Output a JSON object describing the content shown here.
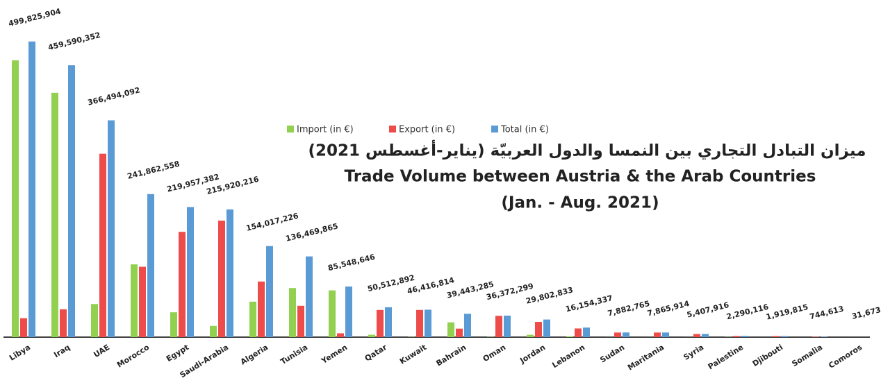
{
  "chart_data": {
    "type": "bar",
    "title_arabic": "ميزان التبادل التجاري بين النمسا والدول العربيّة (يناير-أغسطس 2021)",
    "title": "Trade Volume between Austria & the Arab Countries",
    "subtitle": "(Jan. - Aug. 2021)",
    "categories": [
      "Libya",
      "Iraq",
      "UAE",
      "Morocco",
      "Egypt",
      "Saudi-Arabia",
      "Algeria",
      "Tunisia",
      "Yemen",
      "Qatar",
      "Kuwait",
      "Bahrain",
      "Oman",
      "Jordan",
      "Lebanon",
      "Sudan",
      "Maritania",
      "Syria",
      "Palestine",
      "Djibouti",
      "Somalia",
      "Comoros"
    ],
    "series": [
      {
        "name": "Import (in €)",
        "color": "#92d050",
        "values": [
          468000000,
          413000000,
          56000000,
          123000000,
          42000000,
          19000000,
          60000000,
          83000000,
          79000000,
          4000000,
          400000,
          25000000,
          400000,
          4000000,
          1500000,
          100000,
          50000,
          100000,
          300000,
          20000,
          0,
          0
        ]
      },
      {
        "name": "Export (in €)",
        "color": "#ee4b4b",
        "values": [
          32000000,
          47000000,
          310000000,
          119000000,
          178000000,
          197000000,
          94000000,
          53000000,
          6500000,
          46000000,
          46000000,
          14400000,
          36000000,
          25800000,
          14700000,
          7800000,
          7800000,
          5300000,
          2000000,
          1900000,
          740000,
          30000
        ]
      },
      {
        "name": "Total (in €)",
        "color": "#5b9bd5",
        "values": [
          499825904,
          459590352,
          366494092,
          241862558,
          219957382,
          215920216,
          154017226,
          136469865,
          85548646,
          50512892,
          46416814,
          39443285,
          36372299,
          29802833,
          16154337,
          7882765,
          7865914,
          5407916,
          2290116,
          1919815,
          744613,
          31673
        ],
        "value_labels": [
          "499,825,904",
          "459,590,352",
          "366,494,092",
          "241,862,558",
          "219,957,382",
          "215,920,216",
          "154,017,226",
          "136,469,865",
          "85,548,646",
          "50,512,892",
          "46,416,814",
          "39,443,285",
          "36,372,299",
          "29,802,833",
          "16,154,337",
          "7,882,765",
          "7,865,914",
          "5,407,916",
          "2,290,116",
          "1,919,815",
          "744,613",
          "31,673"
        ]
      }
    ],
    "ylim": [
      0,
      550000000
    ]
  }
}
